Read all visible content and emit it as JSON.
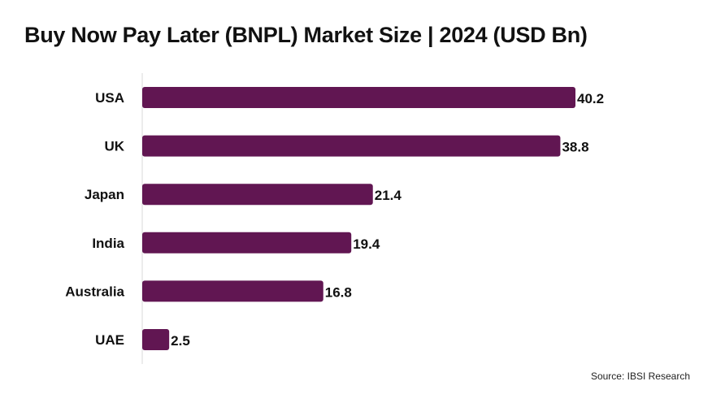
{
  "chart_data": {
    "type": "bar",
    "orientation": "horizontal",
    "title": "Buy Now Pay Later (BNPL) Market Size | 2024 (USD Bn)",
    "categories": [
      "USA",
      "UK",
      "Japan",
      "India",
      "Australia",
      "UAE"
    ],
    "values": [
      40.2,
      38.8,
      21.4,
      19.4,
      16.8,
      2.5
    ],
    "value_labels": [
      "40.2",
      "38.8",
      "21.4",
      "19.4",
      "16.8",
      "2.5"
    ],
    "xlabel": "",
    "ylabel": "",
    "xlim": [
      0,
      40.2
    ],
    "grid": false,
    "legend": "none",
    "bar_color": "#611652",
    "axis_color": "#d9d9d9"
  },
  "source": "Source: IBSI Research"
}
